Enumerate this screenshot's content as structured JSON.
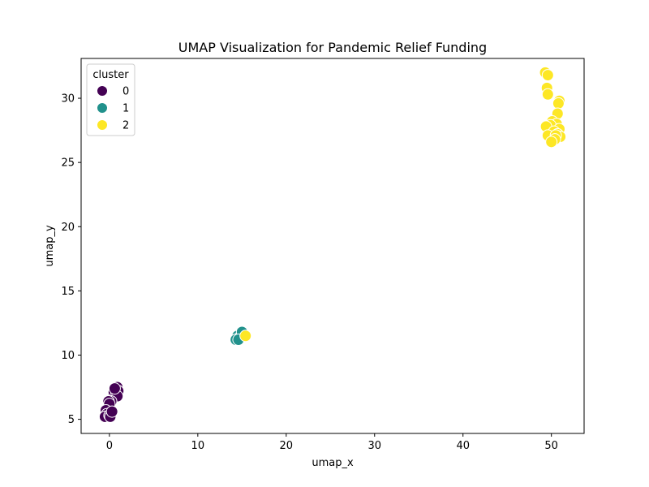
{
  "chart_data": {
    "type": "scatter",
    "title": "UMAP Visualization for Pandemic Relief Funding",
    "xlabel": "umap_x",
    "ylabel": "umap_y",
    "xlim": [
      -3.2,
      53.7
    ],
    "ylim": [
      3.9,
      33.1
    ],
    "xticks": [
      0,
      10,
      20,
      30,
      40,
      50
    ],
    "yticks": [
      5,
      10,
      15,
      20,
      25,
      30
    ],
    "grid": false,
    "legend": {
      "title": "cluster",
      "position": "top-left"
    },
    "series": [
      {
        "name": "0",
        "color": "#440154",
        "points": [
          [
            0.9,
            7.5
          ],
          [
            0.5,
            7.1
          ],
          [
            1.0,
            7.2
          ],
          [
            0.7,
            6.8
          ],
          [
            0.9,
            6.8
          ],
          [
            0.6,
            7.4
          ],
          [
            0.2,
            6.4
          ],
          [
            -0.1,
            6.4
          ],
          [
            0.0,
            6.2
          ],
          [
            -0.4,
            5.7
          ],
          [
            -0.3,
            5.4
          ],
          [
            -0.5,
            5.2
          ],
          [
            0.0,
            5.3
          ],
          [
            0.1,
            5.2
          ],
          [
            0.3,
            5.6
          ]
        ]
      },
      {
        "name": "1",
        "color": "#21918c",
        "points": [
          [
            14.5,
            11.5
          ],
          [
            14.8,
            11.4
          ],
          [
            14.3,
            11.2
          ],
          [
            15.2,
            11.6
          ],
          [
            15.0,
            11.8
          ],
          [
            14.6,
            11.2
          ]
        ]
      },
      {
        "name": "2",
        "color": "#fde725",
        "points": [
          [
            49.3,
            32.0
          ],
          [
            49.6,
            31.8
          ],
          [
            49.5,
            30.8
          ],
          [
            49.6,
            30.3
          ],
          [
            50.9,
            29.8
          ],
          [
            50.8,
            29.6
          ],
          [
            50.7,
            28.8
          ],
          [
            50.1,
            28.2
          ],
          [
            50.6,
            28.0
          ],
          [
            49.9,
            27.9
          ],
          [
            49.4,
            27.8
          ],
          [
            50.9,
            27.6
          ],
          [
            50.3,
            27.4
          ],
          [
            50.7,
            27.2
          ],
          [
            49.6,
            27.1
          ],
          [
            51.0,
            27.0
          ],
          [
            50.5,
            27.1
          ],
          [
            50.4,
            26.8
          ],
          [
            50.0,
            26.6
          ],
          [
            15.4,
            11.5
          ]
        ]
      }
    ]
  }
}
